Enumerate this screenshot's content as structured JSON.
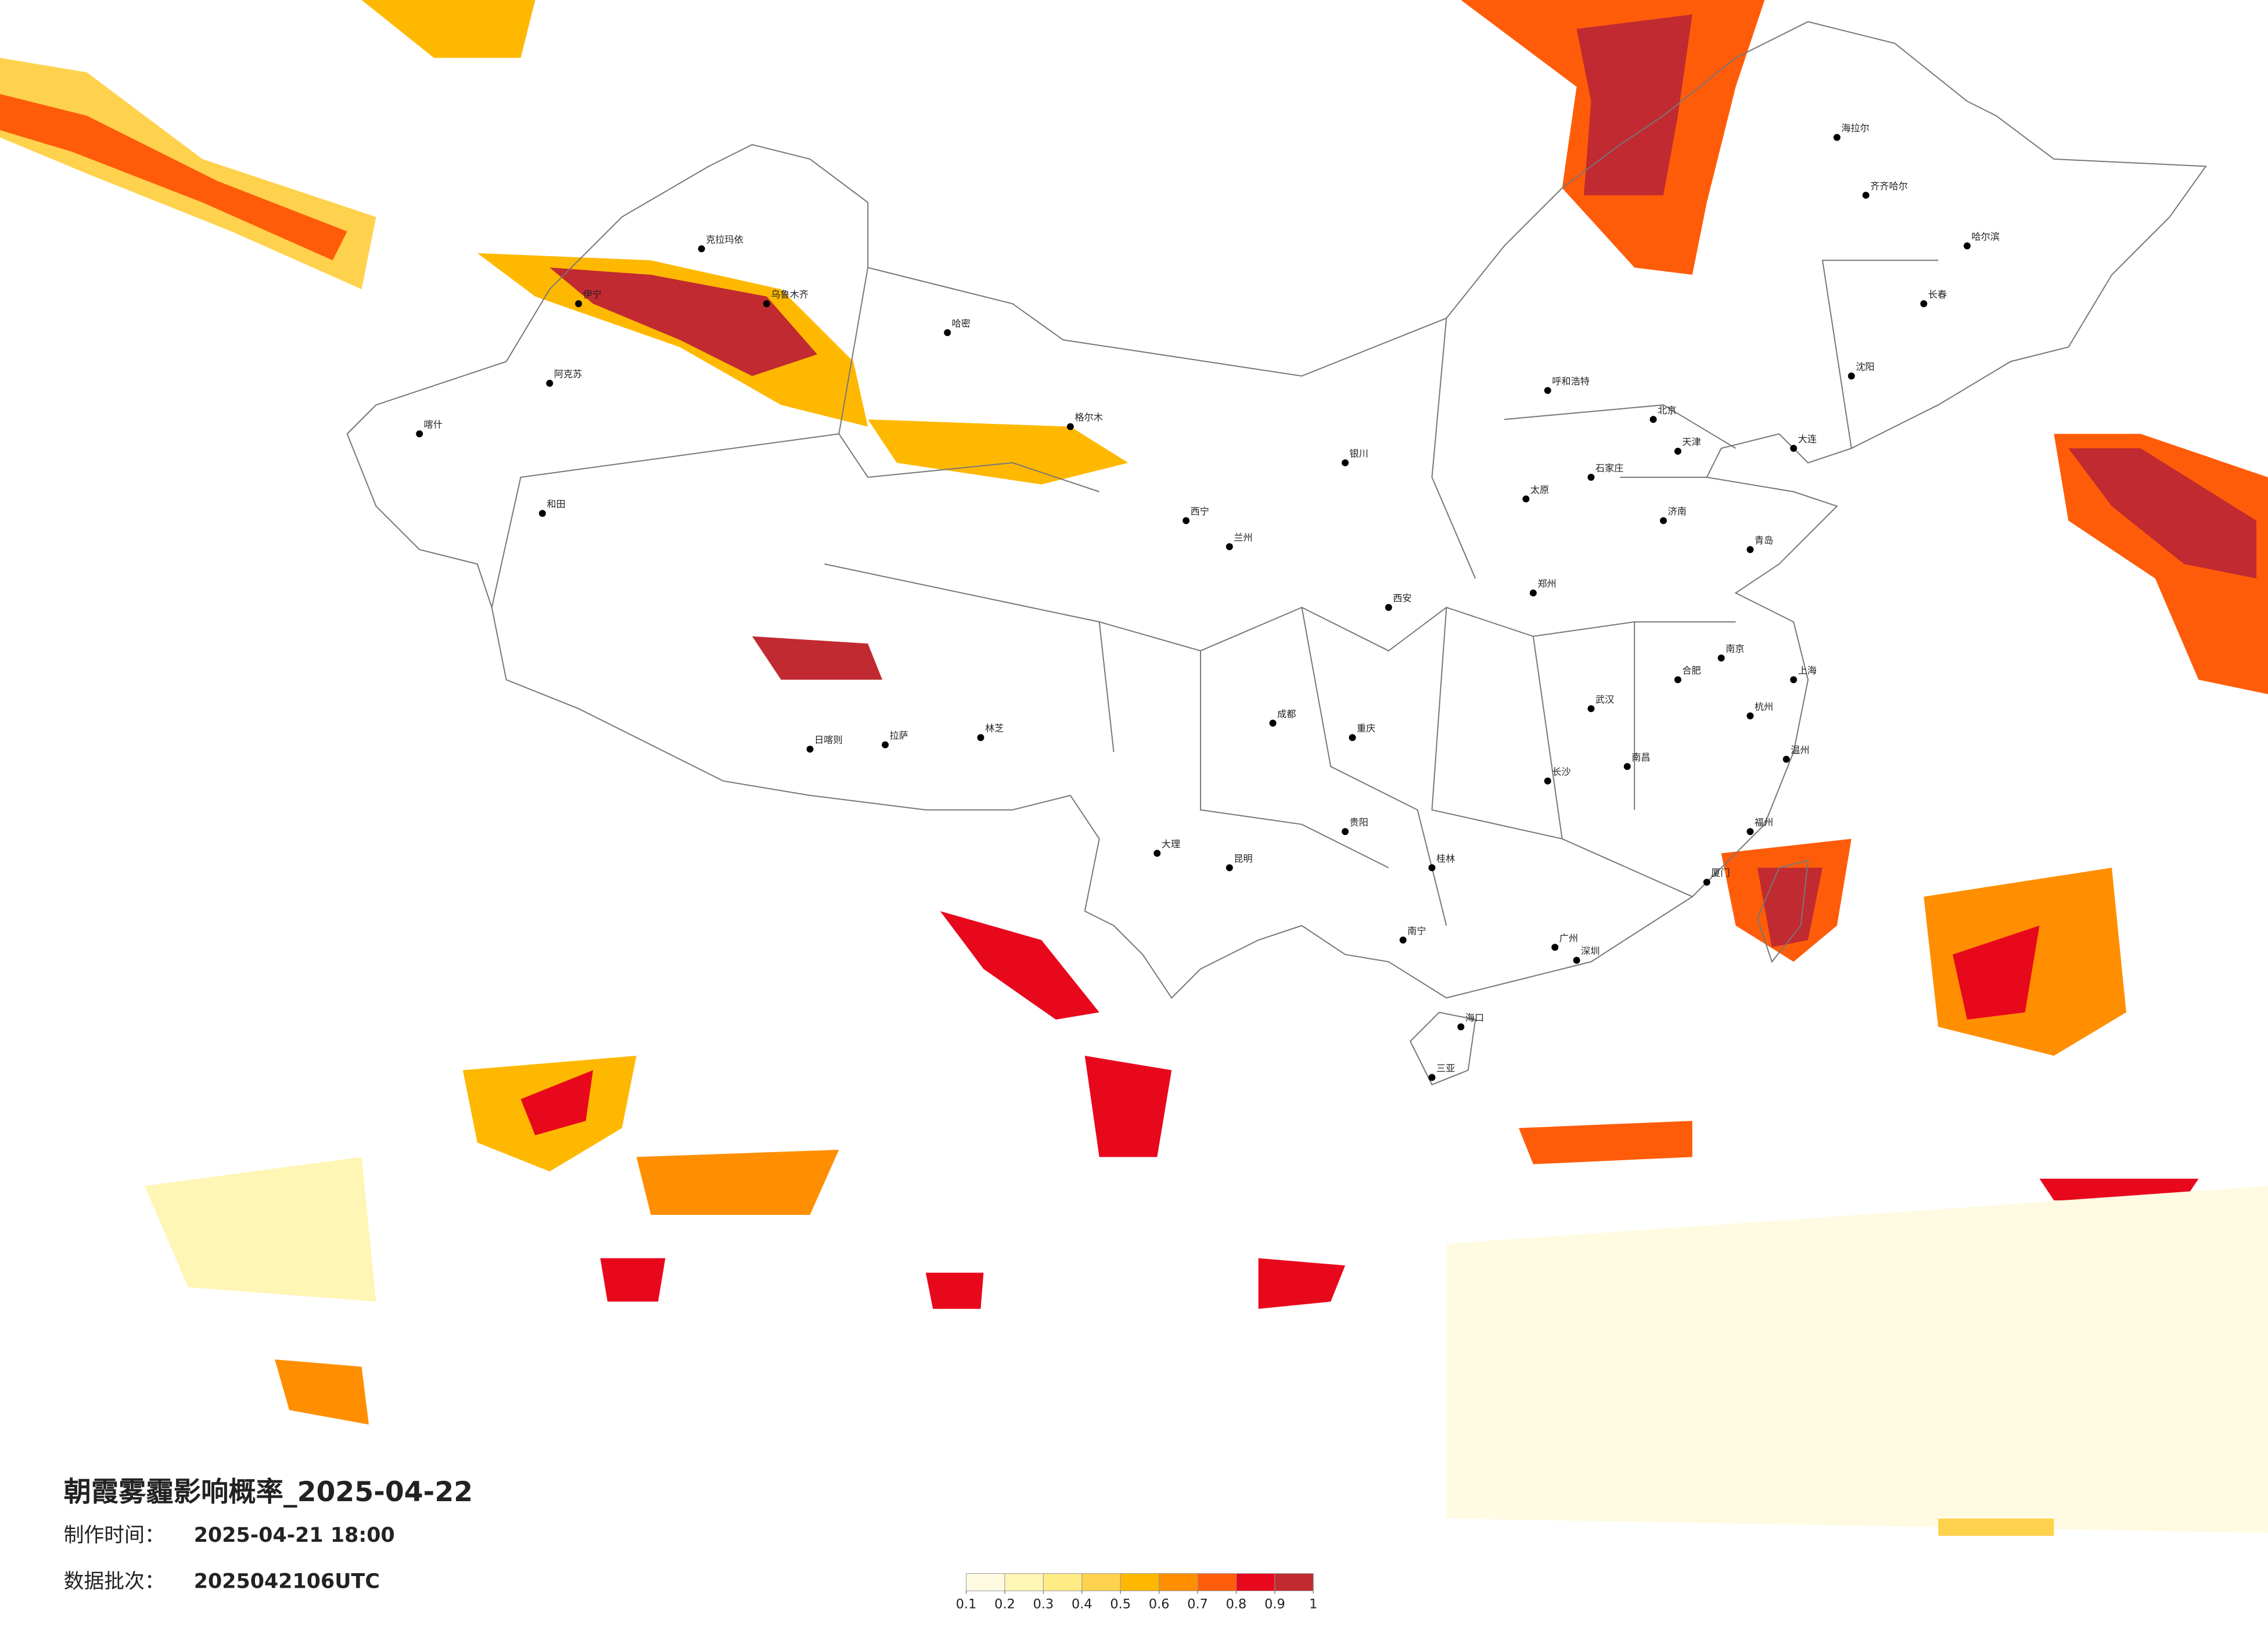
{
  "map": {
    "title": "朝霞雾霾影响概率_2025-04-22",
    "made_label": "制作时间：",
    "made_time": "2025-04-21 18:00",
    "batch_label": "数据批次：",
    "batch": "2025042106UTC",
    "legend": {
      "colors": [
        "#fffbe3",
        "#fff5b5",
        "#ffec85",
        "#ffd24d",
        "#ffb800",
        "#ff8f00",
        "#ff5c0a",
        "#e8081c",
        "#c02a30"
      ],
      "ticks": [
        0.1,
        0.2,
        0.3,
        0.4,
        0.5,
        0.6,
        0.7,
        0.8,
        0.9,
        1
      ]
    },
    "cities": [
      "北京",
      "天津",
      "上海",
      "广州",
      "深圳",
      "重庆",
      "成都",
      "武汉",
      "西安",
      "兰州",
      "乌鲁木齐",
      "哈尔滨",
      "长春",
      "沈阳",
      "拉萨",
      "昆明",
      "南宁",
      "海口",
      "呼和浩特",
      "银川",
      "西宁",
      "郑州",
      "济南",
      "石家庄",
      "太原",
      "南京",
      "杭州",
      "合肥",
      "南昌",
      "长沙",
      "福州",
      "贵阳",
      "喀什",
      "和田",
      "克拉玛依",
      "伊宁",
      "海拉尔",
      "三亚",
      "日喀则",
      "大连",
      "青岛",
      "齐齐哈尔",
      "阿克苏",
      "哈密",
      "格尔木",
      "林芝",
      "大理",
      "桂林",
      "厦门",
      "温州"
    ]
  }
}
